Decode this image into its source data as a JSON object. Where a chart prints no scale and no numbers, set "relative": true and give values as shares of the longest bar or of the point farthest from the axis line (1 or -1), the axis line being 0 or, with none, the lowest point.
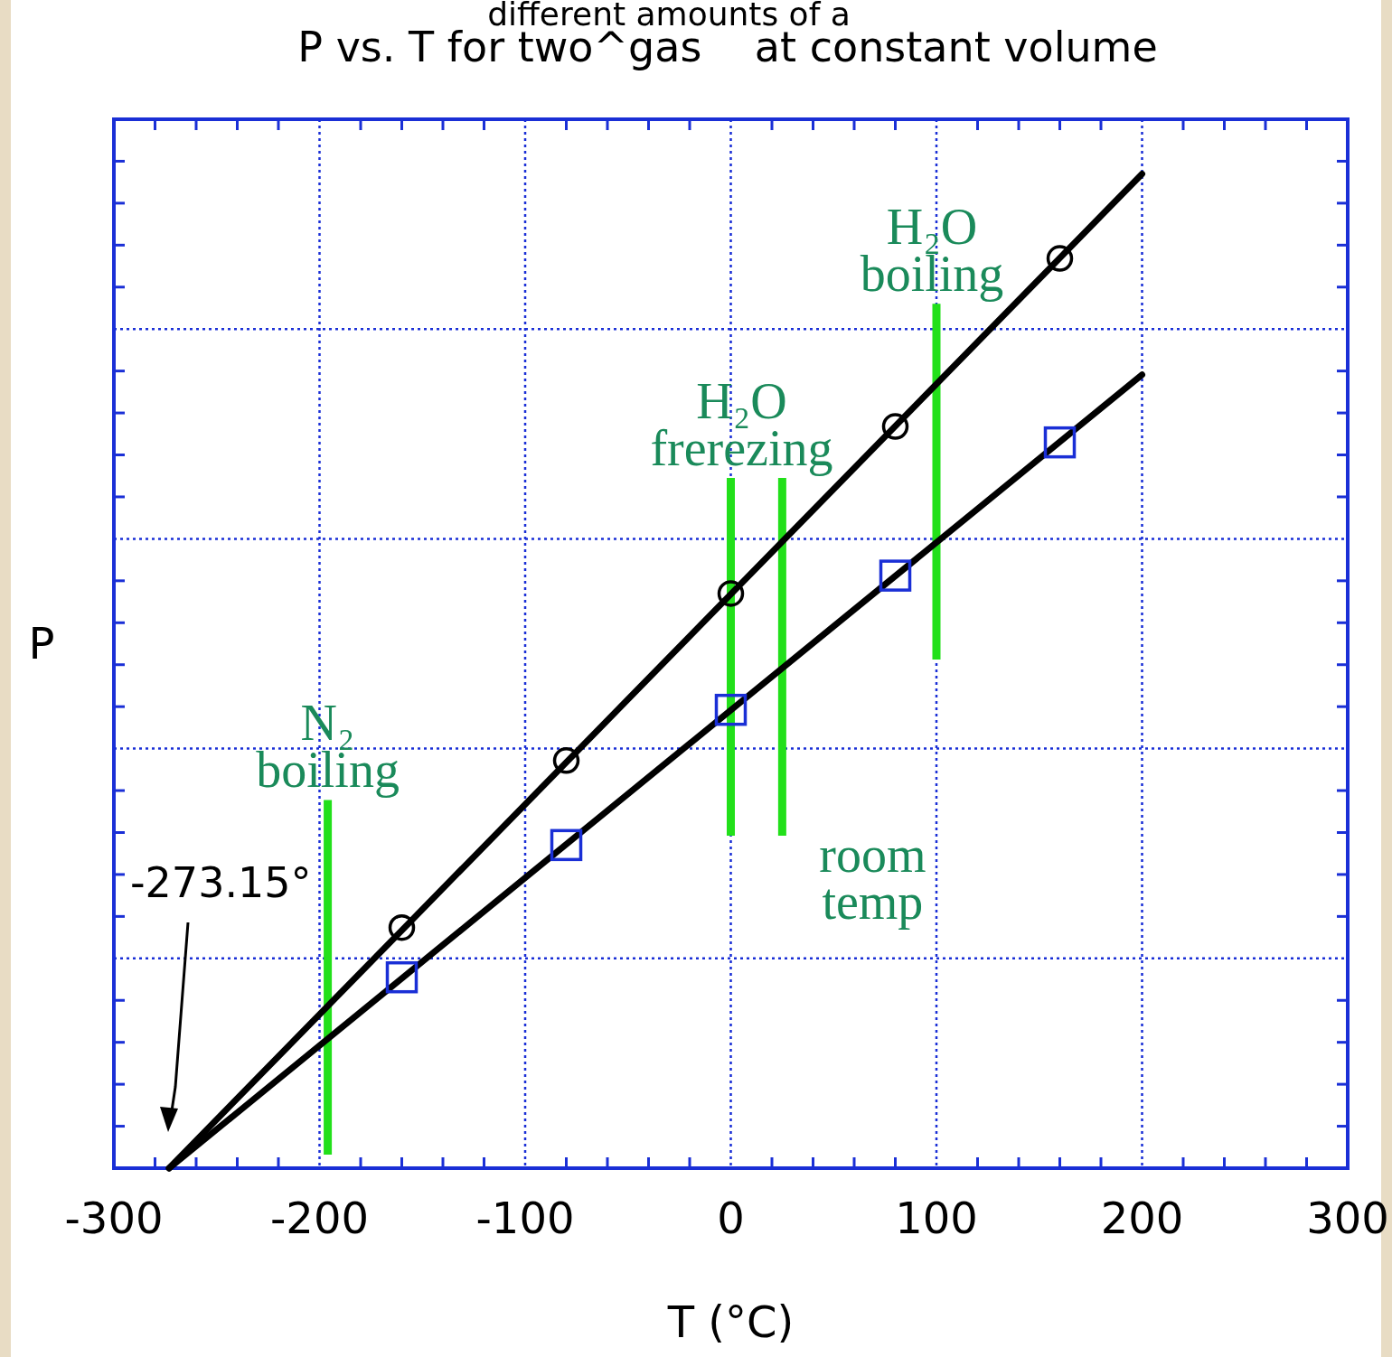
{
  "chart_data": {
    "type": "line",
    "title": "P vs. T for two^gas    at constant volume",
    "subtitle": "different amounts of a",
    "xlabel": "T (°C)",
    "ylabel": "P",
    "relative": true,
    "grid": true,
    "xlim": [
      -300,
      300
    ],
    "xticks": [
      -300,
      {
        "value": -280,
        "label": null
      },
      {
        "value": -260,
        "label": null
      },
      {
        "value": -240,
        "label": null
      },
      {
        "value": -220,
        "label": null
      },
      -200,
      {
        "value": -180,
        "label": null
      },
      {
        "value": -160,
        "label": null
      },
      {
        "value": -140,
        "label": null
      },
      {
        "value": -120,
        "label": null
      },
      -100,
      {
        "value": -80,
        "label": null
      },
      {
        "value": -60,
        "label": null
      },
      {
        "value": -40,
        "label": null
      },
      {
        "value": -20,
        "label": null
      },
      0,
      {
        "value": 20,
        "label": null
      },
      {
        "value": 40,
        "label": null
      },
      {
        "value": 60,
        "label": null
      },
      {
        "value": 80,
        "label": null
      },
      100,
      {
        "value": 120,
        "label": null
      },
      {
        "value": 140,
        "label": null
      },
      {
        "value": 160,
        "label": null
      },
      {
        "value": 180,
        "label": null
      },
      200,
      {
        "value": 220,
        "label": null
      },
      {
        "value": 240,
        "label": null
      },
      {
        "value": 260,
        "label": null
      },
      {
        "value": 280,
        "label": null
      },
      300
    ],
    "series": [
      {
        "type": "line",
        "color": "#000000",
        "marker": "none",
        "x": [
          -273.15,
          200
        ],
        "values": [
          0,
          1
        ]
      },
      {
        "type": "scatter",
        "color": "#000000",
        "marker": "circle",
        "x": [
          -160,
          -80,
          0,
          80,
          160
        ],
        "values": [
          0.242,
          0.41,
          0.578,
          0.746,
          0.915
        ]
      },
      {
        "type": "line",
        "color": "#000000",
        "marker": "none",
        "x": [
          -273.15,
          200
        ],
        "values": [
          0,
          0.798
        ]
      },
      {
        "type": "scatter",
        "color": "#1a2fd6",
        "marker": "square",
        "x": [
          -160,
          -80,
          0,
          80,
          160
        ],
        "values": [
          0.192,
          0.325,
          0.461,
          0.596,
          0.73
        ]
      }
    ],
    "ref_lines": [
      {
        "axis": "x",
        "value": -196,
        "label": "N₂ boiling",
        "color": "#22e01a"
      },
      {
        "axis": "x",
        "value": 0,
        "label": "H₂O frerezing",
        "color": "#22e01a"
      },
      {
        "axis": "x",
        "value": 25,
        "label": "room temp",
        "color": "#22e01a"
      },
      {
        "axis": "x",
        "value": 100,
        "label": "H₂O boiling",
        "color": "#22e01a"
      }
    ],
    "annotations": [
      "-273.15°"
    ]
  }
}
